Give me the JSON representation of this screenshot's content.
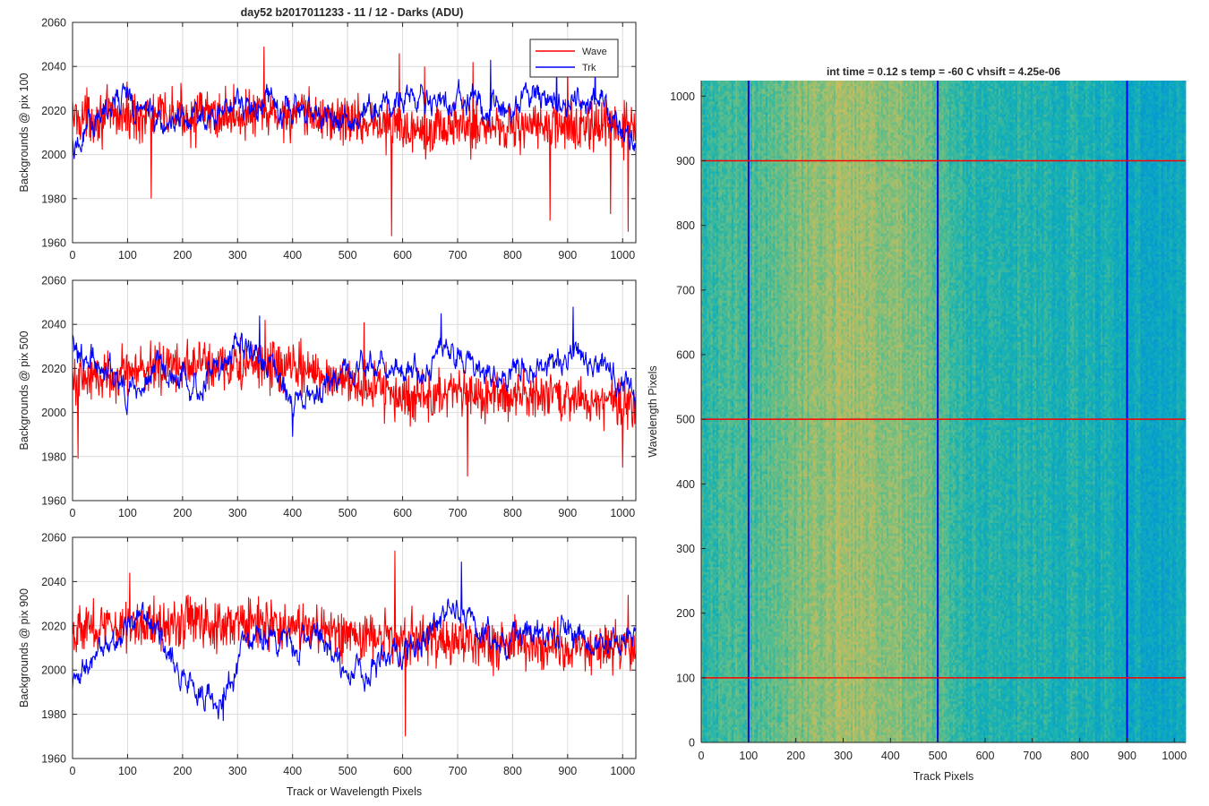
{
  "figure": {
    "title": "day52 b2017011233 - 11 / 12 - Darks (ADU)",
    "shared_xlabel": "Track or Wavelength Pixels"
  },
  "legend": {
    "entries": [
      {
        "label": "Wave",
        "color": "#ff0000"
      },
      {
        "label": "Trk",
        "color": "#0000ff"
      }
    ]
  },
  "chart_data": [
    {
      "type": "line",
      "ylabel": "Backgrounds @ pix 100",
      "xlim": [
        0,
        1024
      ],
      "ylim": [
        1960,
        2060
      ],
      "xticks": [
        0,
        100,
        200,
        300,
        400,
        500,
        600,
        700,
        800,
        900,
        1000
      ],
      "yticks": [
        1960,
        1980,
        2000,
        2020,
        2040,
        2060
      ],
      "grid": true,
      "legend": "top-right",
      "series": [
        {
          "name": "Wave",
          "color": "#ff0000",
          "mean": 2015,
          "noise": 9,
          "trend": [
            [
              0,
              2017
            ],
            [
              200,
              2018
            ],
            [
              400,
              2018
            ],
            [
              500,
              2016
            ],
            [
              600,
              2012
            ],
            [
              800,
              2013
            ],
            [
              1024,
              2012
            ]
          ],
          "spikes": [
            [
              143,
              1980
            ],
            [
              348,
              2049
            ],
            [
              580,
              1963
            ],
            [
              594,
              2046
            ],
            [
              640,
              2040
            ],
            [
              728,
              2042
            ],
            [
              868,
              1970
            ],
            [
              900,
              2044
            ],
            [
              978,
              1973
            ],
            [
              1010,
              1965
            ]
          ]
        },
        {
          "name": "Trk",
          "color": "#0000ff",
          "mean": 2020,
          "noise": 5,
          "trend": [
            [
              0,
              2003
            ],
            [
              40,
              2018
            ],
            [
              100,
              2026
            ],
            [
              160,
              2015
            ],
            [
              260,
              2018
            ],
            [
              340,
              2024
            ],
            [
              420,
              2020
            ],
            [
              500,
              2015
            ],
            [
              560,
              2024
            ],
            [
              620,
              2026
            ],
            [
              700,
              2025
            ],
            [
              760,
              2022
            ],
            [
              820,
              2024
            ],
            [
              900,
              2027
            ],
            [
              960,
              2022
            ],
            [
              1024,
              2003
            ]
          ],
          "spikes": [
            [
              760,
              2043
            ],
            [
              880,
              2043
            ],
            [
              950,
              2042
            ]
          ]
        }
      ]
    },
    {
      "type": "line",
      "ylabel": "Backgrounds @ pix 500",
      "xlim": [
        0,
        1024
      ],
      "ylim": [
        1960,
        2060
      ],
      "xticks": [
        0,
        100,
        200,
        300,
        400,
        500,
        600,
        700,
        800,
        900,
        1000
      ],
      "yticks": [
        1960,
        1980,
        2000,
        2020,
        2040,
        2060
      ],
      "grid": true,
      "series": [
        {
          "name": "Wave",
          "color": "#ff0000",
          "mean": 2015,
          "noise": 9,
          "trend": [
            [
              0,
              2015
            ],
            [
              200,
              2022
            ],
            [
              400,
              2020
            ],
            [
              500,
              2015
            ],
            [
              600,
              2007
            ],
            [
              800,
              2008
            ],
            [
              1024,
              2005
            ]
          ],
          "spikes": [
            [
              10,
              1979
            ],
            [
              350,
              2042
            ],
            [
              530,
              2041
            ],
            [
              718,
              1971
            ],
            [
              1000,
              1975
            ]
          ]
        },
        {
          "name": "Trk",
          "color": "#0000ff",
          "mean": 2015,
          "noise": 5,
          "trend": [
            [
              0,
              2030
            ],
            [
              60,
              2020
            ],
            [
              100,
              2010
            ],
            [
              160,
              2020
            ],
            [
              220,
              2012
            ],
            [
              300,
              2028
            ],
            [
              360,
              2024
            ],
            [
              400,
              2005
            ],
            [
              440,
              2010
            ],
            [
              500,
              2018
            ],
            [
              560,
              2024
            ],
            [
              620,
              2018
            ],
            [
              680,
              2030
            ],
            [
              760,
              2018
            ],
            [
              840,
              2020
            ],
            [
              900,
              2025
            ],
            [
              960,
              2024
            ],
            [
              1024,
              2005
            ]
          ],
          "spikes": [
            [
              340,
              2044
            ],
            [
              400,
              1989
            ],
            [
              670,
              2045
            ],
            [
              910,
              2048
            ]
          ]
        }
      ]
    },
    {
      "type": "line",
      "ylabel": "Backgrounds @ pix 900",
      "xlabel": "Track or Wavelength Pixels",
      "xlim": [
        0,
        1024
      ],
      "ylim": [
        1960,
        2060
      ],
      "xticks": [
        0,
        100,
        200,
        300,
        400,
        500,
        600,
        700,
        800,
        900,
        1000
      ],
      "yticks": [
        1960,
        1980,
        2000,
        2020,
        2040,
        2060
      ],
      "grid": true,
      "series": [
        {
          "name": "Wave",
          "color": "#ff0000",
          "mean": 2018,
          "noise": 9,
          "trend": [
            [
              0,
              2019
            ],
            [
              200,
              2022
            ],
            [
              400,
              2020
            ],
            [
              500,
              2016
            ],
            [
              600,
              2014
            ],
            [
              800,
              2012
            ],
            [
              1024,
              2010
            ]
          ],
          "spikes": [
            [
              104,
              2044
            ],
            [
              586,
              2054
            ],
            [
              605,
              1970
            ],
            [
              1010,
              2034
            ]
          ]
        },
        {
          "name": "Trk",
          "color": "#0000ff",
          "mean": 2012,
          "noise": 5,
          "trend": [
            [
              0,
              1996
            ],
            [
              50,
              2006
            ],
            [
              110,
              2022
            ],
            [
              150,
              2020
            ],
            [
              200,
              1995
            ],
            [
              240,
              1990
            ],
            [
              270,
              1983
            ],
            [
              310,
              2010
            ],
            [
              360,
              2018
            ],
            [
              400,
              2012
            ],
            [
              450,
              2015
            ],
            [
              500,
              1998
            ],
            [
              560,
              2005
            ],
            [
              620,
              2010
            ],
            [
              700,
              2030
            ],
            [
              760,
              2012
            ],
            [
              840,
              2015
            ],
            [
              900,
              2018
            ],
            [
              960,
              2010
            ],
            [
              1024,
              2020
            ]
          ],
          "spikes": [
            [
              707,
              2049
            ],
            [
              274,
              1977
            ]
          ]
        }
      ]
    },
    {
      "type": "heatmap",
      "title": "int time = 0.12 s    temp = -60 C    vhsift = 4.25e-06",
      "xlabel": "Track Pixels",
      "ylabel": "Wavelength Pixels",
      "xlim": [
        0,
        1024
      ],
      "ylim": [
        0,
        1024
      ],
      "xticks": [
        0,
        100,
        200,
        300,
        400,
        500,
        600,
        700,
        800,
        900,
        1000
      ],
      "yticks": [
        0,
        100,
        200,
        300,
        400,
        500,
        600,
        700,
        800,
        900,
        1000
      ],
      "colormap": "parula",
      "vertical_markers": {
        "x": [
          100,
          500,
          900
        ],
        "color": "#0000ff"
      },
      "horizontal_markers": {
        "y": [
          100,
          500,
          900
        ],
        "color": "#ff0000"
      },
      "column_level_profile": [
        [
          0,
          0.44
        ],
        [
          60,
          0.46
        ],
        [
          150,
          0.5
        ],
        [
          230,
          0.56
        ],
        [
          300,
          0.6
        ],
        [
          380,
          0.57
        ],
        [
          450,
          0.54
        ],
        [
          500,
          0.5
        ],
        [
          540,
          0.44
        ],
        [
          600,
          0.42
        ],
        [
          700,
          0.41
        ],
        [
          800,
          0.4
        ],
        [
          900,
          0.37
        ],
        [
          960,
          0.35
        ],
        [
          1024,
          0.36
        ]
      ]
    }
  ]
}
